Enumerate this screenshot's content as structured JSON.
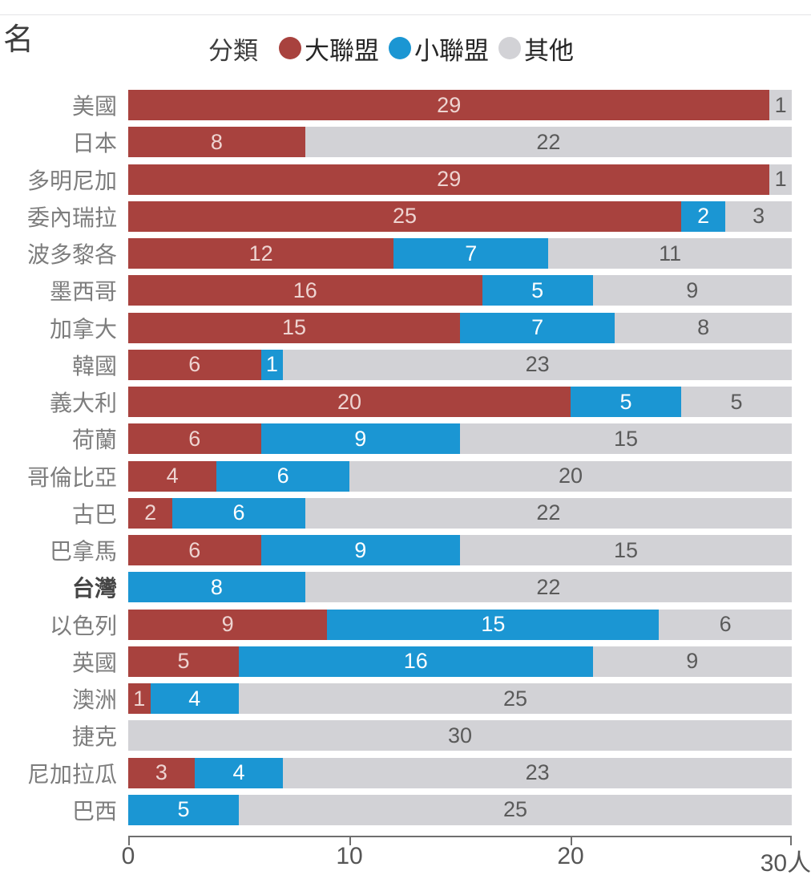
{
  "header": {
    "row_axis_label": "名",
    "legend_title": "分類",
    "legend": [
      {
        "key": "major",
        "label": "大聯盟",
        "color": "#a8423e"
      },
      {
        "key": "minor",
        "label": "小聯盟",
        "color": "#1b96d3"
      },
      {
        "key": "other",
        "label": "其他",
        "color": "#d2d2d6"
      }
    ]
  },
  "chart_data": {
    "type": "bar",
    "orientation": "horizontal",
    "stacked": true,
    "unit": "人",
    "xlim": [
      0,
      30
    ],
    "x_ticks": [
      {
        "value": 0,
        "label": "0"
      },
      {
        "value": 10,
        "label": "10"
      },
      {
        "value": 20,
        "label": "20"
      },
      {
        "value": 30,
        "label": "30人"
      }
    ],
    "categories": [
      "美國",
      "日本",
      "多明尼加",
      "委內瑞拉",
      "波多黎各",
      "墨西哥",
      "加拿大",
      "韓國",
      "義大利",
      "荷蘭",
      "哥倫比亞",
      "古巴",
      "巴拿馬",
      "台灣",
      "以色列",
      "英國",
      "澳洲",
      "捷克",
      "尼加拉瓜",
      "巴西"
    ],
    "highlighted_category": "台灣",
    "series": [
      {
        "key": "major",
        "name": "大聯盟",
        "color": "#a8423e",
        "value_text_color": "#eed4d1",
        "values": [
          29,
          8,
          29,
          25,
          12,
          16,
          15,
          6,
          20,
          6,
          4,
          2,
          6,
          0,
          9,
          5,
          1,
          0,
          3,
          0
        ]
      },
      {
        "key": "minor",
        "name": "小聯盟",
        "color": "#1b96d3",
        "value_text_color": "#ffffff",
        "values": [
          0,
          0,
          0,
          2,
          7,
          5,
          7,
          1,
          5,
          9,
          6,
          6,
          9,
          8,
          15,
          16,
          4,
          0,
          4,
          5
        ]
      },
      {
        "key": "other",
        "name": "其他",
        "color": "#d2d2d6",
        "value_text_color": "#5a5a5a",
        "values": [
          1,
          22,
          1,
          3,
          11,
          9,
          8,
          23,
          5,
          15,
          20,
          22,
          15,
          22,
          6,
          9,
          25,
          30,
          23,
          25
        ]
      }
    ]
  }
}
